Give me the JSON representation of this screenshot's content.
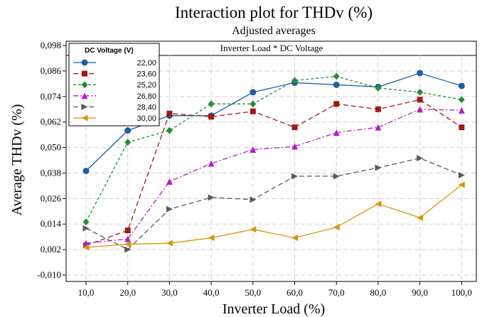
{
  "chart_data": {
    "type": "line",
    "title": "Interaction plot for THDv (%)",
    "subtitle": "Adjusted averages",
    "panel_label": "Inverter Load * DC Voltage",
    "xlabel": "Inverter Load (%)",
    "ylabel": "Average THDv (%)",
    "categories": [
      "10,0",
      "20,0",
      "30,0",
      "40,0",
      "50,0",
      "60,0",
      "70,0",
      "80,0",
      "90,0",
      "100,0"
    ],
    "x": [
      10,
      20,
      30,
      40,
      50,
      60,
      70,
      80,
      90,
      100
    ],
    "y_ticks": [
      "-0,010",
      "0,002",
      "0,014",
      "0,026",
      "0,038",
      "0,050",
      "0,062",
      "0,074",
      "0,086",
      "0,098"
    ],
    "ylim": [
      -0.013,
      0.1
    ],
    "grid": true,
    "legend": {
      "title": "DC Voltage (V)",
      "position": "top-left"
    },
    "series": [
      {
        "name": "22,00",
        "color": "#1f5fa0",
        "marker": "circle",
        "dash": "solid",
        "values": [
          0.039,
          0.058,
          0.065,
          0.065,
          0.076,
          0.0805,
          0.0795,
          0.0785,
          0.085,
          0.079
        ]
      },
      {
        "name": "23,60",
        "color": "#9b1b1b",
        "marker": "square",
        "dash": "long-dash",
        "values": [
          0.004,
          0.011,
          0.066,
          0.0645,
          0.067,
          0.0595,
          0.0705,
          0.068,
          0.0725,
          0.0595
        ]
      },
      {
        "name": "25,20",
        "color": "#2a8b3a",
        "marker": "diamond",
        "dash": "short-dash",
        "values": [
          0.015,
          0.0525,
          0.058,
          0.0705,
          0.0705,
          0.0815,
          0.0835,
          0.078,
          0.076,
          0.0725
        ]
      },
      {
        "name": "26,80",
        "color": "#b020c8",
        "marker": "triangle-up",
        "dash": "dash-dot",
        "values": [
          0.005,
          0.007,
          0.034,
          0.0425,
          0.049,
          0.0505,
          0.057,
          0.0595,
          0.068,
          0.0675
        ]
      },
      {
        "name": "28,40",
        "color": "#5a5a5a",
        "marker": "triangle-right",
        "dash": "long-dash",
        "values": [
          0.012,
          0.002,
          0.021,
          0.0265,
          0.0255,
          0.0365,
          0.0365,
          0.0405,
          0.045,
          0.037
        ]
      },
      {
        "name": "30,00",
        "color": "#d4960c",
        "marker": "triangle-left",
        "dash": "solid",
        "values": [
          0.003,
          0.0045,
          0.005,
          0.0075,
          0.0115,
          0.0075,
          0.0125,
          0.0235,
          0.017,
          0.0325
        ]
      }
    ]
  }
}
